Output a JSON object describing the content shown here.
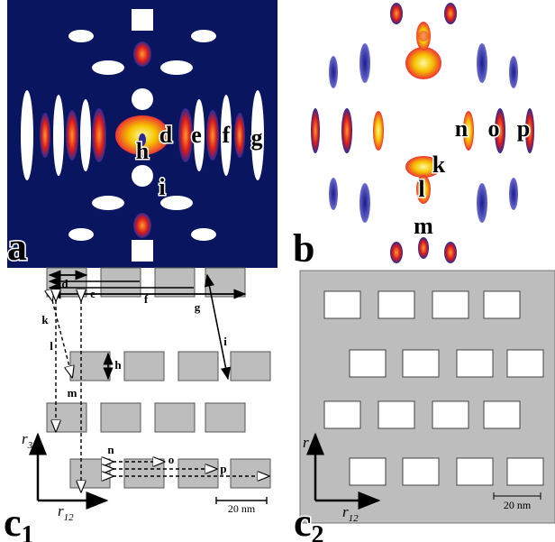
{
  "panels": [
    {
      "label": "a",
      "annotations": [
        "h",
        "d",
        "e",
        "f",
        "g",
        "i"
      ]
    },
    {
      "label": "b",
      "annotations": [
        "n",
        "o",
        "p",
        "k",
        "l",
        "m"
      ]
    },
    {
      "label": "c",
      "subscript": "1",
      "annotations": [
        "d",
        "e",
        "f",
        "g",
        "i",
        "k",
        "l",
        "h",
        "m",
        "n",
        "o",
        "p"
      ],
      "axes": {
        "vertical": "r",
        "vertical_sub": "3",
        "horizontal": "r",
        "horizontal_sub": "12"
      },
      "scale_bar": "20 nm"
    },
    {
      "label": "c",
      "subscript": "2",
      "axes": {
        "vertical": "r",
        "vertical_sub": "3",
        "horizontal": "r",
        "horizontal_sub": "12"
      },
      "scale_bar": "20 nm"
    }
  ]
}
